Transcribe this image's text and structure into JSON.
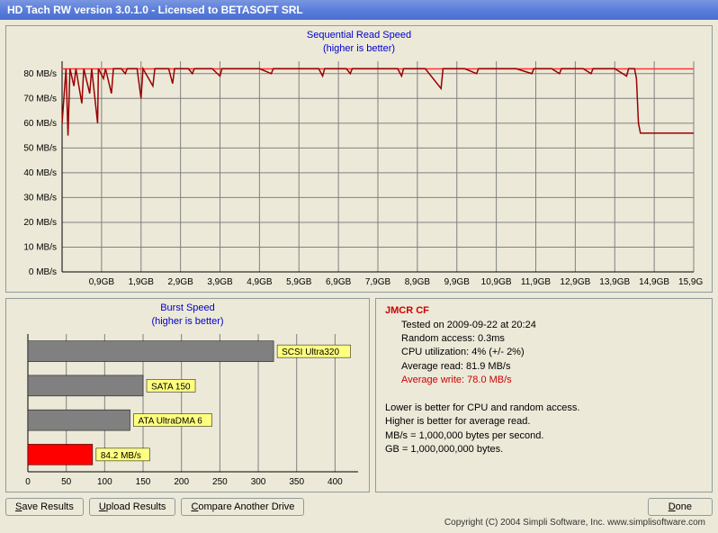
{
  "window": {
    "title": "HD Tach RW version 3.0.1.0 - Licensed to BETASOFT SRL"
  },
  "read_chart": {
    "type": "line",
    "title": "Sequential Read Speed",
    "subtitle": "(higher is better)",
    "ylabel_suffix": " MB/s",
    "xlabel_suffix": "GB",
    "ylim": [
      0,
      85
    ],
    "ytick_step": 10,
    "yticks": [
      0,
      10,
      20,
      30,
      40,
      50,
      60,
      70,
      80
    ],
    "xticks": [
      "0,9",
      "1,9",
      "2,9",
      "3,9",
      "4,9",
      "5,9",
      "6,9",
      "7,9",
      "8,9",
      "9,9",
      "10,9",
      "11,9",
      "12,9",
      "13,9",
      "14,9",
      "15,9"
    ],
    "avg_line_value": 81.9,
    "avg_line_color": "#ff3333",
    "line_color": "#990000",
    "background_color": "#ece9d8",
    "gridline_color": "#808080",
    "data": [
      [
        0.0,
        60
      ],
      [
        0.1,
        82
      ],
      [
        0.15,
        55
      ],
      [
        0.2,
        82
      ],
      [
        0.3,
        75
      ],
      [
        0.35,
        82
      ],
      [
        0.5,
        68
      ],
      [
        0.55,
        82
      ],
      [
        0.7,
        72
      ],
      [
        0.75,
        82
      ],
      [
        0.9,
        60
      ],
      [
        0.92,
        82
      ],
      [
        1.05,
        78
      ],
      [
        1.1,
        82
      ],
      [
        1.25,
        72
      ],
      [
        1.3,
        82
      ],
      [
        1.5,
        82
      ],
      [
        1.6,
        80
      ],
      [
        1.65,
        82
      ],
      [
        1.9,
        82
      ],
      [
        2.0,
        70
      ],
      [
        2.05,
        82
      ],
      [
        2.3,
        75
      ],
      [
        2.35,
        82
      ],
      [
        2.7,
        82
      ],
      [
        2.8,
        76
      ],
      [
        2.85,
        82
      ],
      [
        3.2,
        82
      ],
      [
        3.3,
        80
      ],
      [
        3.35,
        82
      ],
      [
        3.8,
        82
      ],
      [
        4.0,
        79
      ],
      [
        4.05,
        82
      ],
      [
        4.5,
        82
      ],
      [
        5.0,
        82
      ],
      [
        5.3,
        80
      ],
      [
        5.35,
        82
      ],
      [
        6.0,
        82
      ],
      [
        6.5,
        82
      ],
      [
        6.6,
        79
      ],
      [
        6.65,
        82
      ],
      [
        7.2,
        82
      ],
      [
        7.3,
        80
      ],
      [
        7.35,
        82
      ],
      [
        8.0,
        82
      ],
      [
        8.5,
        82
      ],
      [
        8.6,
        79
      ],
      [
        8.65,
        82
      ],
      [
        9.2,
        82
      ],
      [
        9.6,
        74
      ],
      [
        9.65,
        82
      ],
      [
        10.2,
        82
      ],
      [
        10.5,
        80
      ],
      [
        10.55,
        82
      ],
      [
        11.0,
        82
      ],
      [
        11.5,
        82
      ],
      [
        11.9,
        80
      ],
      [
        11.95,
        82
      ],
      [
        12.4,
        82
      ],
      [
        12.6,
        80
      ],
      [
        12.65,
        82
      ],
      [
        13.2,
        82
      ],
      [
        13.4,
        80
      ],
      [
        13.45,
        82
      ],
      [
        14.0,
        82
      ],
      [
        14.3,
        79
      ],
      [
        14.35,
        82
      ],
      [
        14.5,
        82
      ],
      [
        14.55,
        78
      ],
      [
        14.6,
        60
      ],
      [
        14.65,
        56
      ],
      [
        15.0,
        56
      ],
      [
        15.5,
        56
      ],
      [
        16.0,
        56
      ]
    ]
  },
  "burst_chart": {
    "type": "bar-horizontal",
    "title": "Burst Speed",
    "subtitle": "(higher is better)",
    "xlim": [
      0,
      430
    ],
    "xtick_step": 50,
    "xticks": [
      0,
      50,
      100,
      150,
      200,
      250,
      300,
      350,
      400
    ],
    "background_color": "#ece9d8",
    "gridline_color": "#808080",
    "bars": [
      {
        "label": "SCSI Ultra320",
        "value": 320,
        "color": "#808080"
      },
      {
        "label": "SATA 150",
        "value": 150,
        "color": "#808080"
      },
      {
        "label": "ATA UltraDMA 6",
        "value": 133,
        "color": "#808080"
      },
      {
        "label": "84.2 MB/s",
        "value": 84.2,
        "color": "#ff0000"
      }
    ]
  },
  "info": {
    "device": "JMCR CF",
    "tested_on": "Tested on 2009-09-22 at 20:24",
    "random_access": "Random access: 0.3ms",
    "cpu_util": "CPU utilization: 4% (+/- 2%)",
    "avg_read": "Average read: 81.9 MB/s",
    "avg_write": "Average write: 78.0 MB/s",
    "note1": "Lower is better for CPU and random access.",
    "note2": "Higher is better for average read.",
    "note3": "MB/s = 1,000,000 bytes per second.",
    "note4": "GB = 1,000,000,000 bytes."
  },
  "buttons": {
    "save": "Save Results",
    "upload": "Upload Results",
    "compare": "Compare Another Drive",
    "done": "Done"
  },
  "copyright": "Copyright (C) 2004 Simpli Software, Inc. www.simplisoftware.com"
}
